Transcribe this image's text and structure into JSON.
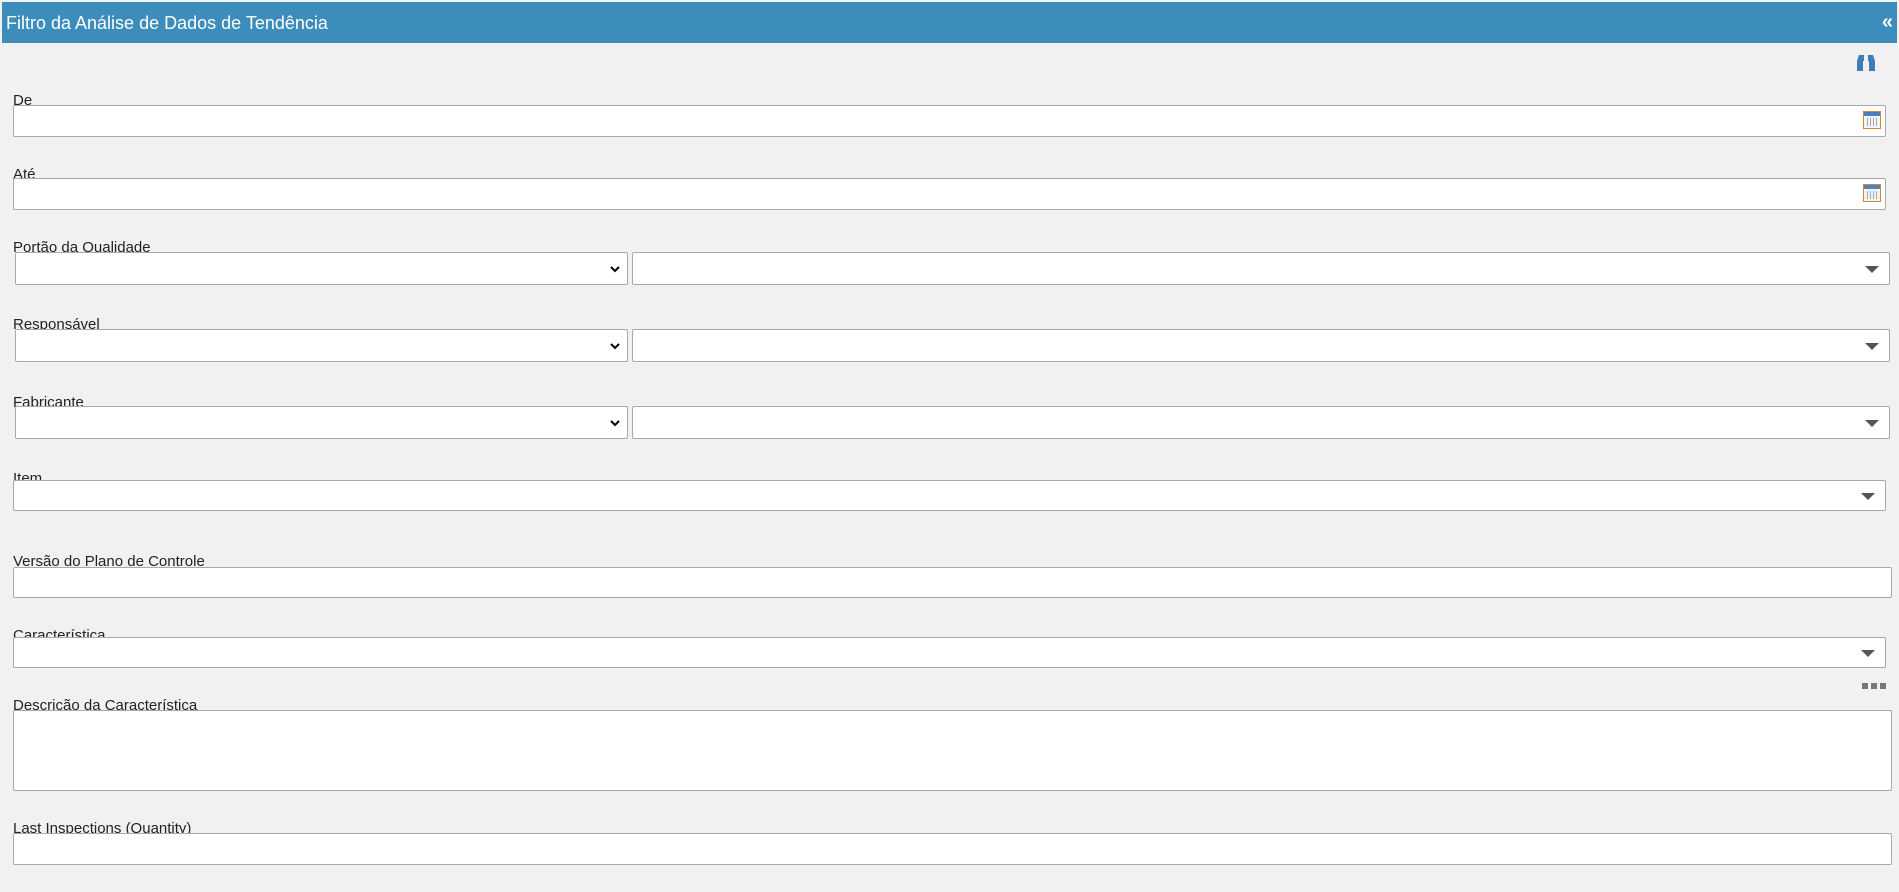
{
  "header": {
    "title": "Filtro da Análise de Dados de Tendência"
  },
  "fields": [
    {
      "label": "De"
    },
    {
      "label": "Até"
    },
    {
      "label": "Portão da Qualidade"
    },
    {
      "label": "Responsável"
    },
    {
      "label": "Fabricante"
    },
    {
      "label": "Item"
    },
    {
      "label": "Versão do Plano de Controle"
    },
    {
      "label": "Característica"
    },
    {
      "label": "Descrição da Característica"
    },
    {
      "label": "Last Inspections (Quantity)"
    }
  ]
}
